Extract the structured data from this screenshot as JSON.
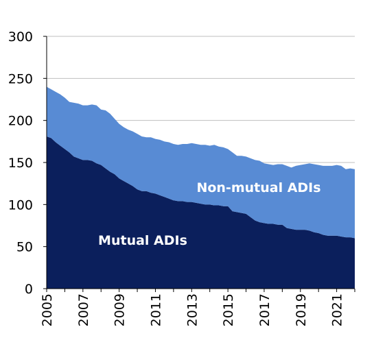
{
  "chart_data": {
    "type": "area",
    "stacked": true,
    "xlim": [
      2005,
      2022
    ],
    "ylim": [
      0,
      300
    ],
    "y_ticks": [
      0,
      50,
      100,
      150,
      200,
      250,
      300
    ],
    "x_ticks": [
      2005,
      2007,
      2009,
      2011,
      2013,
      2015,
      2017,
      2019,
      2021
    ],
    "grid": true,
    "series": [
      {
        "name": "Mutual ADIs",
        "color": "#0b1f5c",
        "x": [
          2005.0,
          2005.25,
          2005.5,
          2005.75,
          2006.0,
          2006.25,
          2006.5,
          2006.75,
          2007.0,
          2007.25,
          2007.5,
          2007.75,
          2008.0,
          2008.25,
          2008.5,
          2008.75,
          2009.0,
          2009.25,
          2009.5,
          2009.75,
          2010.0,
          2010.25,
          2010.5,
          2010.75,
          2011.0,
          2011.25,
          2011.5,
          2011.75,
          2012.0,
          2012.25,
          2012.5,
          2012.75,
          2013.0,
          2013.25,
          2013.5,
          2013.75,
          2014.0,
          2014.25,
          2014.5,
          2014.75,
          2015.0,
          2015.25,
          2015.5,
          2015.75,
          2016.0,
          2016.25,
          2016.5,
          2016.75,
          2017.0,
          2017.25,
          2017.5,
          2017.75,
          2018.0,
          2018.25,
          2018.5,
          2018.75,
          2019.0,
          2019.25,
          2019.5,
          2019.75,
          2020.0,
          2020.25,
          2020.5,
          2020.75,
          2021.0,
          2021.25,
          2021.5,
          2021.75,
          2022.0
        ],
        "values": [
          181,
          179,
          174,
          170,
          166,
          162,
          157,
          155,
          153,
          153,
          152,
          149,
          147,
          143,
          139,
          136,
          131,
          128,
          125,
          122,
          118,
          116,
          116,
          114,
          113,
          111,
          109,
          107,
          105,
          104,
          104,
          103,
          103,
          102,
          101,
          100,
          100,
          99,
          99,
          98,
          98,
          92,
          91,
          90,
          89,
          85,
          81,
          79,
          78,
          77,
          77,
          76,
          76,
          72,
          71,
          70,
          70,
          70,
          69,
          67,
          66,
          64,
          63,
          63,
          63,
          62,
          61,
          61,
          60
        ]
      },
      {
        "name": "Non-mutual ADIs",
        "color": "#588bd4",
        "x": [
          2005.0,
          2005.25,
          2005.5,
          2005.75,
          2006.0,
          2006.25,
          2006.5,
          2006.75,
          2007.0,
          2007.25,
          2007.5,
          2007.75,
          2008.0,
          2008.25,
          2008.5,
          2008.75,
          2009.0,
          2009.25,
          2009.5,
          2009.75,
          2010.0,
          2010.25,
          2010.5,
          2010.75,
          2011.0,
          2011.25,
          2011.5,
          2011.75,
          2012.0,
          2012.25,
          2012.5,
          2012.75,
          2013.0,
          2013.25,
          2013.5,
          2013.75,
          2014.0,
          2014.25,
          2014.5,
          2014.75,
          2015.0,
          2015.25,
          2015.5,
          2015.75,
          2016.0,
          2016.25,
          2016.5,
          2016.75,
          2017.0,
          2017.25,
          2017.5,
          2017.75,
          2018.0,
          2018.25,
          2018.5,
          2018.75,
          2019.0,
          2019.25,
          2019.5,
          2019.75,
          2020.0,
          2020.25,
          2020.5,
          2020.75,
          2021.0,
          2021.25,
          2021.5,
          2021.75,
          2022.0
        ],
        "values": [
          59,
          58,
          60,
          61,
          61,
          60,
          64,
          65,
          65,
          65,
          67,
          69,
          66,
          69,
          69,
          66,
          65,
          64,
          64,
          65,
          66,
          65,
          64,
          66,
          65,
          66,
          66,
          67,
          67,
          67,
          68,
          69,
          70,
          70,
          70,
          71,
          70,
          72,
          70,
          70,
          68,
          70,
          67,
          68,
          68,
          70,
          72,
          73,
          71,
          71,
          70,
          72,
          72,
          74,
          73,
          76,
          77,
          78,
          80,
          81,
          81,
          82,
          83,
          83,
          84,
          84,
          81,
          82,
          82
        ]
      }
    ],
    "annotations": [
      {
        "text": "Non-mutual ADIs",
        "x": 2016.7,
        "y": 115
      },
      {
        "text": "Mutual ADIs",
        "x": 2010.3,
        "y": 52
      }
    ]
  }
}
